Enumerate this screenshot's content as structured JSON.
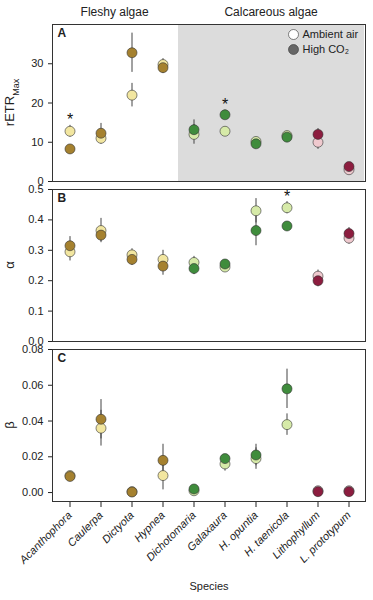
{
  "chart_data": [
    {
      "type": "scatter",
      "panel": "A",
      "ylabel": "rETR",
      "ylabel_sub": "Max",
      "categories": [
        "Acanthophora",
        "Caulerpa",
        "Dictyota",
        "Hypnea",
        "Dichotomaria",
        "Galaxaura",
        "H. opuntia",
        "H. taenicola",
        "Lithophyllum",
        "L. prototypum"
      ],
      "groups": [
        {
          "label": "Fleshy algae",
          "categories": [
            "Acanthophora",
            "Caulerpa",
            "Dictyota",
            "Hypnea"
          ]
        },
        {
          "label": "Calcareous algae",
          "categories": [
            "Dichotomaria",
            "Galaxaura",
            "H. opuntia",
            "H. taenicola",
            "Lithophyllum",
            "L. prototypum"
          ]
        }
      ],
      "legend": "top-right",
      "tick_labels": "y",
      "ylim": [
        0,
        40
      ],
      "yticks": [
        0,
        10,
        20,
        30
      ],
      "series": [
        {
          "name": "Ambient air",
          "color": "#ffffff",
          "colors": [
            "#f2e6a0",
            "#f2e6a0",
            "#f2e6a0",
            "#f2e6a0",
            "#d6eaa8",
            "#d6eaa8",
            "#d6eaa8",
            "#d6eaa8",
            "#efc9ce",
            "#efc9ce"
          ],
          "values": [
            12.8,
            11,
            22,
            29.8,
            12,
            12.8,
            10.2,
            11.7,
            10,
            3
          ],
          "errors": [
            1.5,
            1.5,
            3,
            1.5,
            2.5,
            1,
            1,
            0.8,
            1.8,
            0.8
          ]
        },
        {
          "name": "High CO₂",
          "color": "#666666",
          "colors": [
            "#a5812f",
            "#a5812f",
            "#a5812f",
            "#a5812f",
            "#3f8c3c",
            "#3f8c3c",
            "#3f8c3c",
            "#3f8c3c",
            "#8c1d3f",
            "#8c1d3f"
          ],
          "values": [
            8.3,
            12.3,
            32.8,
            29,
            13.2,
            17,
            9.6,
            11.3,
            12,
            3.8
          ],
          "errors": [
            0.8,
            2.5,
            5,
            1.5,
            2.5,
            1.2,
            1.2,
            0.8,
            1.5,
            0.7
          ]
        }
      ],
      "annotations": [
        {
          "category": "Acanthophora",
          "text": "*"
        },
        {
          "category": "Galaxaura",
          "text": "*"
        }
      ]
    },
    {
      "type": "scatter",
      "panel": "B",
      "ylabel": "α",
      "categories": [
        "Acanthophora",
        "Caulerpa",
        "Dictyota",
        "Hypnea",
        "Dichotomaria",
        "Galaxaura",
        "H. opuntia",
        "H. taenicola",
        "Lithophyllum",
        "L. prototypum"
      ],
      "tick_labels": "y",
      "ylim": [
        0,
        0.5
      ],
      "yticks": [
        {
          "value": 0,
          "label": "0.0"
        },
        0.1,
        0.2,
        0.3,
        0.4,
        0.5
      ],
      "series": [
        {
          "name": "Ambient air",
          "color": "#ffffff",
          "colors": [
            "#f2e6a0",
            "#f2e6a0",
            "#f2e6a0",
            "#f2e6a0",
            "#d6eaa8",
            "#d6eaa8",
            "#d6eaa8",
            "#d6eaa8",
            "#efc9ce",
            "#efc9ce"
          ],
          "values": [
            0.295,
            0.365,
            0.285,
            0.27,
            0.26,
            0.245,
            0.43,
            0.44,
            0.215,
            0.34
          ],
          "errors": [
            0.03,
            0.04,
            0.02,
            0.03,
            0.02,
            0.01,
            0.04,
            0.02,
            0.02,
            0.02
          ]
        },
        {
          "name": "High CO₂",
          "color": "#666666",
          "colors": [
            "#a5812f",
            "#a5812f",
            "#a5812f",
            "#a5812f",
            "#3f8c3c",
            "#3f8c3c",
            "#3f8c3c",
            "#3f8c3c",
            "#8c1d3f",
            "#8c1d3f"
          ],
          "values": [
            0.315,
            0.35,
            0.27,
            0.248,
            0.24,
            0.255,
            0.365,
            0.38,
            0.2,
            0.355
          ],
          "errors": [
            0.03,
            0.02,
            0.02,
            0.03,
            0.02,
            0.01,
            0.05,
            0.01,
            0.02,
            0.02
          ]
        }
      ],
      "annotations": [
        {
          "category": "H. taenicola",
          "text": "*"
        }
      ]
    },
    {
      "type": "scatter",
      "panel": "C",
      "ylabel": "β",
      "xlabel": "Species",
      "categories": [
        "Acanthophora",
        "Caulerpa",
        "Dictyota",
        "Hypnea",
        "Dichotomaria",
        "Galaxaura",
        "H. opuntia",
        "H. taenicola",
        "Lithophyllum",
        "L. prototypum"
      ],
      "ylim": [
        -0.005,
        0.08
      ],
      "yticks": [
        {
          "value": 0,
          "label": "0.00"
        },
        0.02,
        0.04,
        0.06,
        0.08
      ],
      "series": [
        {
          "name": "Ambient air",
          "color": "#ffffff",
          "colors": [
            "#f2e6a0",
            "#f2e6a0",
            "#f2e6a0",
            "#f2e6a0",
            "#d6eaa8",
            "#d6eaa8",
            "#d6eaa8",
            "#d6eaa8",
            "#efc9ce",
            "#efc9ce"
          ],
          "values": [
            0.0095,
            0.036,
            0.0005,
            0.0095,
            0.001,
            0.016,
            0.019,
            0.038,
            0.001,
            0.001
          ],
          "errors": [
            0.001,
            0.01,
            0.0008,
            0.008,
            0.0008,
            0.004,
            0.006,
            0.006,
            0.0008,
            0.0008
          ]
        },
        {
          "name": "High CO₂",
          "color": "#666666",
          "colors": [
            "#a5812f",
            "#a5812f",
            "#a5812f",
            "#a5812f",
            "#3f8c3c",
            "#3f8c3c",
            "#3f8c3c",
            "#3f8c3c",
            "#8c1d3f",
            "#8c1d3f"
          ],
          "values": [
            0.009,
            0.041,
            0.0003,
            0.018,
            0.002,
            0.019,
            0.021,
            0.058,
            0.0005,
            0.0005
          ],
          "errors": [
            0.001,
            0.011,
            0.0008,
            0.009,
            0.0008,
            0.002,
            0.006,
            0.011,
            0.0008,
            0.0008
          ]
        }
      ]
    }
  ]
}
